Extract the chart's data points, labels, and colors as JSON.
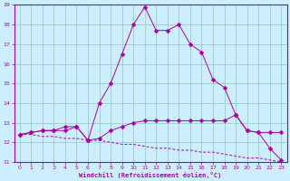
{
  "xlabel": "Windchill (Refroidissement éolien,°C)",
  "bg_color": "#cceeff",
  "line_color": "#aa00aa",
  "grid_color": "#99cccc",
  "xlim": [
    -0.5,
    23.5
  ],
  "ylim": [
    11,
    19
  ],
  "yticks": [
    11,
    12,
    13,
    14,
    15,
    16,
    17,
    18,
    19
  ],
  "xticks": [
    0,
    1,
    2,
    3,
    4,
    5,
    6,
    7,
    8,
    9,
    10,
    11,
    12,
    13,
    14,
    15,
    16,
    17,
    18,
    19,
    20,
    21,
    22,
    23
  ],
  "line1_x": [
    0,
    1,
    2,
    3,
    4,
    5,
    6,
    7,
    8,
    9,
    10,
    11,
    12,
    13,
    14,
    15,
    16,
    17,
    18,
    19,
    20,
    21,
    22,
    23
  ],
  "line1_y": [
    12.4,
    12.5,
    12.6,
    12.6,
    12.6,
    12.8,
    12.1,
    14.0,
    15.0,
    16.5,
    18.0,
    18.9,
    17.7,
    17.7,
    18.0,
    17.0,
    16.6,
    15.2,
    14.8,
    13.4,
    12.6,
    12.5,
    11.7,
    11.1
  ],
  "line2_x": [
    0,
    1,
    2,
    3,
    4,
    5,
    6,
    7,
    8,
    9,
    10,
    11,
    12,
    13,
    14,
    15,
    16,
    17,
    18,
    19,
    20,
    21,
    22,
    23
  ],
  "line2_y": [
    12.4,
    12.5,
    12.6,
    12.6,
    12.8,
    12.8,
    12.1,
    12.2,
    12.6,
    12.8,
    13.0,
    13.1,
    13.1,
    13.1,
    13.1,
    13.1,
    13.1,
    13.1,
    13.1,
    13.4,
    12.6,
    12.5,
    12.5,
    12.5
  ],
  "line3_x": [
    0,
    1,
    2,
    3,
    4,
    5,
    6,
    7,
    8,
    9,
    10,
    11,
    12,
    13,
    14,
    15,
    16,
    17,
    18,
    19,
    20,
    21,
    22,
    23
  ],
  "line3_y": [
    12.4,
    12.4,
    12.3,
    12.3,
    12.2,
    12.2,
    12.1,
    12.1,
    12.0,
    11.9,
    11.9,
    11.8,
    11.7,
    11.7,
    11.6,
    11.6,
    11.5,
    11.5,
    11.4,
    11.3,
    11.2,
    11.2,
    11.1,
    11.0
  ]
}
